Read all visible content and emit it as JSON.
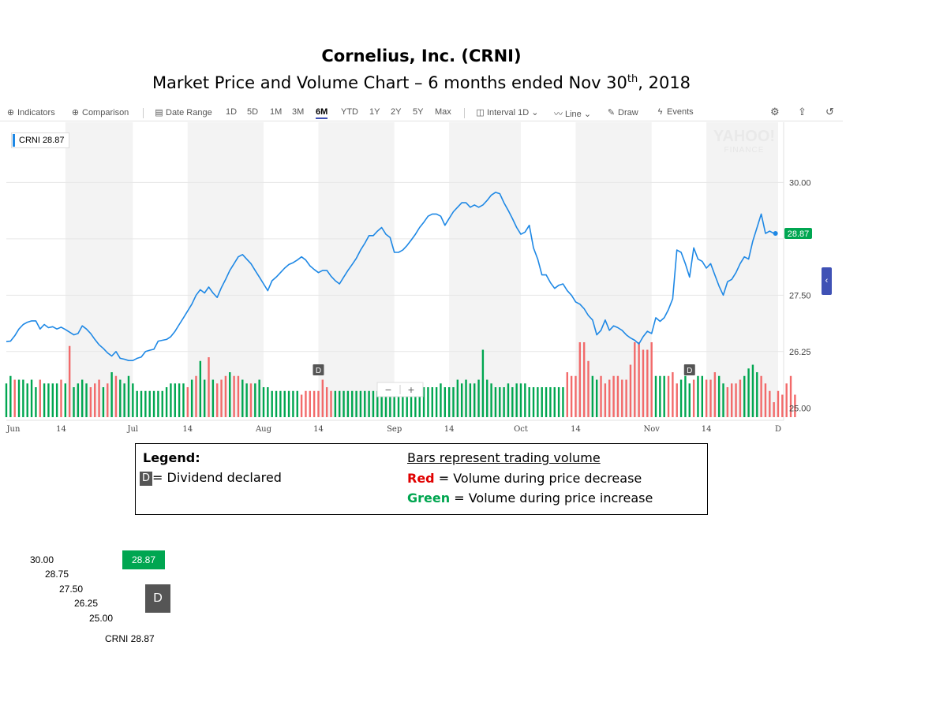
{
  "title": {
    "line1": "Cornelius, Inc.  (CRNI)",
    "line2_main": "Market Price and Volume Chart – 6 months ended Nov 30",
    "line2_sup": "th",
    "line2_tail": ", 2018"
  },
  "toolbar": {
    "indicators": "Indicators",
    "comparison": "Comparison",
    "date_range": "Date Range",
    "ranges": [
      "1D",
      "5D",
      "1M",
      "3M",
      "6M",
      "YTD",
      "1Y",
      "2Y",
      "5Y",
      "Max"
    ],
    "active_range": "6M",
    "interval": "Interval",
    "interval_value": "1D",
    "line": "Line",
    "draw": "Draw",
    "events": "Events",
    "icons": [
      "plus-circle-icon",
      "calendar-icon",
      "candle-icon",
      "line-chart-icon",
      "pencil-icon",
      "lightning-icon",
      "gear-icon",
      "share-icon",
      "reset-icon"
    ]
  },
  "watermark": {
    "line1": "YAHOO!",
    "line2": "FINANCE"
  },
  "series_label": "CRNI 28.87",
  "last_price_badge": "28.87",
  "dividend_marker": "D",
  "zoom": {
    "minus": "−",
    "plus": "+"
  },
  "side_tab": "‹",
  "colors": {
    "price_line": "#1e88e5",
    "up_volume": "#00a650",
    "down_volume": "#f26a6a",
    "badge": "#00a651",
    "active_tab": "#3f51b5"
  },
  "chart_data": {
    "type": "line",
    "title": "Cornelius, Inc.  (CRNI)",
    "subtitle": "Market Price and Volume Chart – 6 months ended Nov 30th, 2018",
    "ylim": [
      24.9,
      31.3
    ],
    "y_ticks": [
      "30.00",
      "27.50",
      "26.25",
      "25.00"
    ],
    "y_tick_values": [
      30.0,
      27.5,
      26.25,
      25.0
    ],
    "y_gridlines": [
      30.0,
      28.75,
      27.5,
      26.25
    ],
    "x_ticks": [
      "Jun",
      "14",
      "Jul",
      "14",
      "Aug",
      "14",
      "Sep",
      "14",
      "Oct",
      "14",
      "Nov",
      "14",
      "D"
    ],
    "x_tick_days": [
      0,
      13,
      30,
      43,
      61,
      74,
      92,
      105,
      122,
      135,
      153,
      166,
      183
    ],
    "shaded_months": [
      [
        14,
        30
      ],
      [
        43,
        61
      ],
      [
        74,
        92
      ],
      [
        105,
        122
      ],
      [
        135,
        153
      ],
      [
        166,
        183
      ]
    ],
    "grid": true,
    "price_series": {
      "name": "CRNI",
      "day": [
        0,
        1,
        2,
        3,
        4,
        5,
        6,
        7,
        8,
        9,
        10,
        11,
        12,
        13,
        14,
        15,
        16,
        17,
        18,
        19,
        20,
        21,
        22,
        23,
        24,
        25,
        26,
        27,
        28,
        29,
        30,
        31,
        32,
        33,
        34,
        35,
        36,
        37,
        38,
        39,
        40,
        41,
        42,
        43,
        44,
        45,
        46,
        47,
        48,
        49,
        50,
        51,
        52,
        53,
        54,
        55,
        56,
        57,
        58,
        59,
        60,
        61,
        62,
        63,
        64,
        65,
        66,
        67,
        68,
        69,
        70,
        71,
        72,
        73,
        74,
        75,
        76,
        77,
        78,
        79,
        80,
        81,
        82,
        83,
        84,
        85,
        86,
        87,
        88,
        89,
        90,
        91,
        92,
        93,
        94,
        95,
        96,
        97,
        98,
        99,
        100,
        101,
        102,
        103,
        104,
        105,
        106,
        107,
        108,
        109,
        110,
        111,
        112,
        113,
        114,
        115,
        116,
        117,
        118,
        119,
        120,
        121,
        122,
        123,
        124,
        125,
        126,
        127,
        128,
        129,
        130,
        131,
        132,
        133,
        134,
        135,
        136,
        137,
        138,
        139,
        140,
        141,
        142,
        143,
        144,
        145,
        146,
        147,
        148,
        149,
        150,
        151,
        152,
        153,
        154,
        155,
        156,
        157,
        158,
        159,
        160,
        161,
        162,
        163,
        164,
        165,
        166,
        167,
        168,
        169,
        170,
        171,
        172,
        173,
        174,
        175,
        176,
        177,
        178,
        179,
        180,
        181,
        182
      ],
      "price": [
        26.47,
        26.48,
        26.6,
        26.75,
        26.85,
        26.9,
        26.93,
        26.93,
        26.75,
        26.85,
        26.78,
        26.8,
        26.75,
        26.79,
        26.74,
        26.68,
        26.62,
        26.65,
        26.82,
        26.75,
        26.65,
        26.52,
        26.4,
        26.32,
        26.22,
        26.15,
        26.25,
        26.1,
        26.08,
        26.05,
        26.05,
        26.1,
        26.13,
        26.25,
        26.28,
        26.3,
        26.48,
        26.5,
        26.52,
        26.58,
        26.7,
        26.85,
        27.0,
        27.15,
        27.3,
        27.5,
        27.62,
        27.55,
        27.68,
        27.55,
        27.45,
        27.67,
        27.85,
        28.05,
        28.2,
        28.35,
        28.4,
        28.3,
        28.2,
        28.05,
        27.9,
        27.75,
        27.6,
        27.82,
        27.9,
        28.0,
        28.1,
        28.18,
        28.22,
        28.28,
        28.35,
        28.28,
        28.15,
        28.07,
        28.0,
        28.05,
        28.05,
        27.92,
        27.82,
        27.75,
        27.9,
        28.05,
        28.18,
        28.32,
        28.5,
        28.65,
        28.82,
        28.82,
        28.92,
        29.0,
        28.85,
        28.78,
        28.45,
        28.45,
        28.5,
        28.6,
        28.72,
        28.85,
        29.0,
        29.12,
        29.25,
        29.3,
        29.3,
        29.25,
        29.05,
        29.2,
        29.35,
        29.45,
        29.55,
        29.55,
        29.45,
        29.5,
        29.45,
        29.5,
        29.6,
        29.72,
        29.78,
        29.75,
        29.55,
        29.38,
        29.2,
        29.0,
        28.85,
        28.9,
        29.05,
        28.55,
        28.3,
        27.95,
        27.95,
        27.78,
        27.65,
        27.72,
        27.75,
        27.6,
        27.5,
        27.35,
        27.3,
        27.2,
        27.05,
        26.95,
        26.62,
        26.72,
        26.95,
        26.72,
        26.82,
        26.78,
        26.72,
        26.62,
        26.55,
        26.5,
        26.42,
        26.58,
        26.7,
        26.65,
        27.0,
        26.92,
        27.0,
        27.18,
        27.42,
        28.5,
        28.45,
        28.2,
        27.9,
        28.55,
        28.3,
        28.25,
        28.1,
        28.2,
        27.95,
        27.7,
        27.5,
        27.8,
        27.85,
        28.0,
        28.2,
        28.35,
        28.3,
        28.7,
        29.0,
        29.3,
        28.87,
        28.92,
        28.87
      ]
    },
    "volume_series": {
      "name": "Volume",
      "direction": [
        "up",
        "up",
        "down",
        "up",
        "up",
        "up",
        "up",
        "up",
        "down",
        "up",
        "up",
        "up",
        "up",
        "down",
        "up",
        "down",
        "up",
        "up",
        "up",
        "up",
        "down",
        "down",
        "down",
        "up",
        "down",
        "up",
        "down",
        "up",
        "up",
        "up",
        "up",
        "up",
        "up",
        "up",
        "up",
        "up",
        "up",
        "up",
        "up",
        "up",
        "up",
        "up",
        "up",
        "down",
        "up",
        "down",
        "up",
        "up",
        "down",
        "up",
        "down",
        "down",
        "down",
        "up",
        "down",
        "down",
        "up",
        "up",
        "down",
        "up",
        "up",
        "up",
        "up",
        "up",
        "up",
        "up",
        "up",
        "up",
        "up",
        "up",
        "down",
        "down",
        "down",
        "down",
        "down",
        "down",
        "down",
        "down",
        "up",
        "up",
        "up",
        "up",
        "up",
        "up",
        "up",
        "up",
        "up",
        "up",
        "up",
        "up",
        "up",
        "up",
        "up",
        "up",
        "up",
        "up",
        "up",
        "up",
        "up",
        "up",
        "up",
        "up",
        "up",
        "up",
        "up",
        "up",
        "up",
        "up",
        "up",
        "up",
        "up",
        "up",
        "up",
        "up",
        "up",
        "up",
        "up",
        "up",
        "up",
        "up",
        "up",
        "up",
        "up",
        "up",
        "up",
        "up",
        "up",
        "up",
        "up",
        "up",
        "up",
        "up",
        "up",
        "down",
        "down",
        "down",
        "down",
        "down",
        "down",
        "up",
        "up",
        "down",
        "down",
        "down",
        "down",
        "down",
        "down",
        "down",
        "down",
        "down",
        "down",
        "down",
        "down",
        "down",
        "up",
        "up",
        "up",
        "down",
        "down",
        "down",
        "up",
        "up",
        "up",
        "down",
        "up",
        "up",
        "down",
        "down",
        "down",
        "up",
        "up",
        "down",
        "down",
        "down",
        "down",
        "up",
        "up",
        "up",
        "up",
        "down",
        "down",
        "down"
      ],
      "relative": [
        0.45,
        0.55,
        0.5,
        0.5,
        0.5,
        0.45,
        0.5,
        0.4,
        0.5,
        0.45,
        0.45,
        0.45,
        0.45,
        0.5,
        0.45,
        0.95,
        0.4,
        0.45,
        0.5,
        0.45,
        0.4,
        0.45,
        0.5,
        0.4,
        0.45,
        0.6,
        0.55,
        0.5,
        0.45,
        0.55,
        0.45,
        0.35,
        0.35,
        0.35,
        0.35,
        0.35,
        0.35,
        0.35,
        0.4,
        0.45,
        0.45,
        0.45,
        0.45,
        0.4,
        0.5,
        0.55,
        0.75,
        0.5,
        0.8,
        0.5,
        0.45,
        0.5,
        0.55,
        0.6,
        0.55,
        0.55,
        0.5,
        0.45,
        0.45,
        0.45,
        0.5,
        0.4,
        0.4,
        0.35,
        0.35,
        0.35,
        0.35,
        0.35,
        0.35,
        0.35,
        0.3,
        0.35,
        0.35,
        0.35,
        0.35,
        0.5,
        0.4,
        0.35,
        0.35,
        0.35,
        0.35,
        0.35,
        0.35,
        0.35,
        0.35,
        0.35,
        0.35,
        0.35,
        0.35,
        0.35,
        0.35,
        0.35,
        0.4,
        0.4,
        0.4,
        0.4,
        0.4,
        0.4,
        0.4,
        0.4,
        0.4,
        0.4,
        0.4,
        0.45,
        0.4,
        0.4,
        0.4,
        0.5,
        0.45,
        0.5,
        0.45,
        0.45,
        0.5,
        0.9,
        0.5,
        0.45,
        0.4,
        0.4,
        0.4,
        0.45,
        0.4,
        0.45,
        0.45,
        0.45,
        0.4,
        0.4,
        0.4,
        0.4,
        0.4,
        0.4,
        0.4,
        0.4,
        0.4,
        0.6,
        0.55,
        0.55,
        1.0,
        1.0,
        0.75,
        0.55,
        0.5,
        0.55,
        0.45,
        0.5,
        0.55,
        0.55,
        0.5,
        0.5,
        0.7,
        1.0,
        1.0,
        0.9,
        0.9,
        1.0,
        0.55,
        0.55,
        0.55,
        0.55,
        0.6,
        0.45,
        0.5,
        0.55,
        0.45,
        0.5,
        0.55,
        0.55,
        0.5,
        0.5,
        0.6,
        0.55,
        0.45,
        0.4,
        0.45,
        0.45,
        0.5,
        0.55,
        0.65,
        0.7,
        0.6,
        0.55,
        0.45,
        0.35,
        0.2,
        0.35,
        0.3,
        0.45,
        0.55,
        0.3
      ]
    },
    "dividend_days": [
      74,
      162
    ],
    "last_price": 28.87
  },
  "legend": {
    "heading": "Legend:",
    "dividend_key": "D",
    "dividend_text": "= Dividend declared",
    "volume_heading": "Bars represent trading volume",
    "red_word": "Red",
    "red_text": " = Volume during price decrease",
    "green_word": "Green",
    "green_text": " = Volume during price increase"
  },
  "stray": {
    "ticks": [
      "30.00",
      "28.75",
      "27.50",
      "26.25",
      "25.00"
    ],
    "badge": "28.87",
    "d": "D",
    "series_label": "CRNI 28.87"
  }
}
